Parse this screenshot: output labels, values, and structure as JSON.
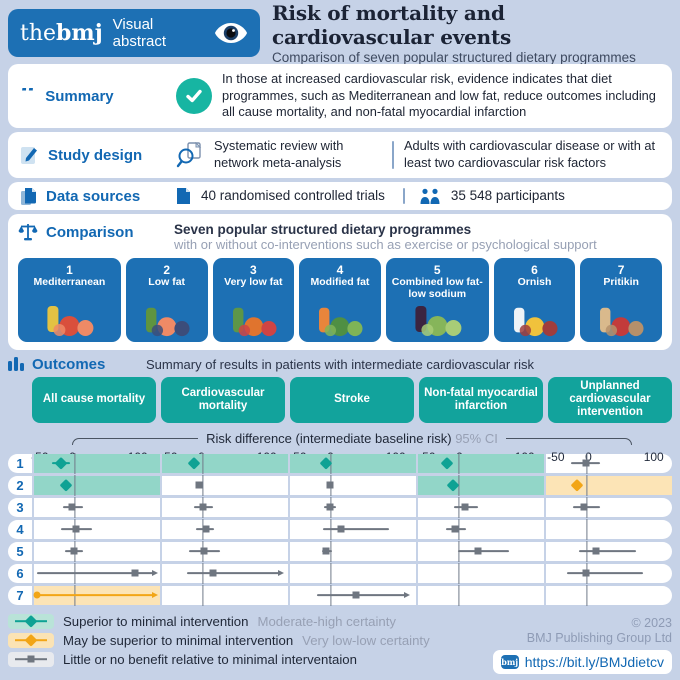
{
  "header": {
    "brand_the": "the",
    "brand_bmj": "bmj",
    "brand_label": "Visual abstract",
    "title": "Risk of mortality and cardiovascular events",
    "subtitle": "Comparison of seven popular structured dietary programmes"
  },
  "summary": {
    "label": "Summary",
    "text": "In those at increased cardiovascular risk, evidence indicates that diet programmes, such as Mediterranean and low fat, reduce outcomes including all cause mortality, and non-fatal myocardial infarction"
  },
  "study_design": {
    "label": "Study design",
    "method": "Systematic review with network meta-analysis",
    "population": "Adults with cardiovascular disease or with at least two cardiovascular risk factors"
  },
  "data_sources": {
    "label": "Data sources",
    "trials": "40 randomised controlled trials",
    "participants": "35 548 participants"
  },
  "comparison": {
    "label": "Comparison",
    "line1": "Seven popular structured dietary programmes",
    "line2": "with or without co-interventions such as exercise or psychological support",
    "diets": [
      {
        "number": "1",
        "name": "Mediterranean",
        "icon": "mediterranean-foods-icon",
        "art": [
          "#e3c243",
          "#d94f3c",
          "#ef8a66"
        ],
        "wide": true
      },
      {
        "number": "2",
        "name": "Low fat",
        "icon": "low-fat-foods-icon",
        "art": [
          "#5f9440",
          "#ef8a66",
          "#3c4d7a"
        ],
        "wide": false
      },
      {
        "number": "3",
        "name": "Very low fat",
        "icon": "very-low-fat-foods-icon",
        "art": [
          "#5d9648",
          "#e0742e",
          "#cf4444"
        ],
        "wide": false
      },
      {
        "number": "4",
        "name": "Modified fat",
        "icon": "modified-fat-foods-icon",
        "art": [
          "#e8853b",
          "#4f8f43",
          "#7fb457"
        ],
        "wide": false
      },
      {
        "number": "5",
        "name": "Combined low fat-low sodium",
        "icon": "combined-low-fat-low-sodium-foods-icon",
        "art": [
          "#3b2440",
          "#86b55a",
          "#a8cc77"
        ],
        "wide": true
      },
      {
        "number": "6",
        "name": "Ornish",
        "icon": "ornish-foods-icon",
        "art": [
          "#eef3f7",
          "#f0c23c",
          "#a03d3d"
        ],
        "wide": false
      },
      {
        "number": "7",
        "name": "Pritikin",
        "icon": "pritikin-foods-icon",
        "art": [
          "#d9b98c",
          "#c23b3b",
          "#b5906b"
        ],
        "wide": false
      }
    ]
  },
  "outcomes": {
    "label": "Outcomes",
    "subtitle": "Summary of results in patients with intermediate cardiovascular risk"
  },
  "chart_data": {
    "type": "forest",
    "title": "Risk difference (intermediate baseline risk)",
    "title_suffix": "95% CI",
    "axis": {
      "ticks": [
        "-50",
        "0",
        "100"
      ],
      "tick_values": [
        -50,
        0,
        100
      ],
      "min": -62,
      "max": 128
    },
    "columns": [
      "All cause mortality",
      "Cardiovascular mortality",
      "Stroke",
      "Non-fatal myocardial infarction",
      "Unplanned cardiovascular intervention"
    ],
    "rows": [
      {
        "id": "1",
        "name": "Mediterranean",
        "cells": [
          {
            "bg": "teal",
            "marker": "teal-diamond",
            "v": -22,
            "lo": -35,
            "hi": -8
          },
          {
            "bg": "teal",
            "marker": "teal-diamond",
            "v": -13,
            "lo": -18,
            "hi": -8
          },
          {
            "bg": "teal",
            "marker": "teal-diamond",
            "v": -8,
            "lo": -12,
            "hi": -4
          },
          {
            "bg": "teal",
            "marker": "teal-diamond",
            "v": -19,
            "lo": -25,
            "hi": -13
          },
          {
            "marker": "gray-square",
            "v": -2,
            "lo": -25,
            "hi": 20
          }
        ]
      },
      {
        "id": "2",
        "name": "Low fat",
        "cells": [
          {
            "bg": "teal",
            "marker": "teal-diamond",
            "v": -13,
            "lo": -17,
            "hi": -9
          },
          {
            "marker": "gray-square",
            "v": -6,
            "lo": -11,
            "hi": -1
          },
          {
            "marker": "gray-square",
            "v": -1,
            "lo": -5,
            "hi": 3
          },
          {
            "bg": "teal",
            "marker": "teal-diamond",
            "v": -9,
            "lo": -13,
            "hi": -5
          },
          {
            "bg": "orange",
            "marker": "orange-diamond",
            "v": -15,
            "lo": -22,
            "hi": -8
          }
        ]
      },
      {
        "id": "3",
        "name": "Very low fat",
        "cells": [
          {
            "marker": "gray-square",
            "v": -5,
            "lo": -18,
            "hi": 12
          },
          {
            "marker": "gray-square",
            "v": 0,
            "lo": -13,
            "hi": 15
          },
          {
            "marker": "gray-square",
            "v": -2,
            "lo": -10,
            "hi": 7
          },
          {
            "marker": "gray-square",
            "v": 9,
            "lo": -8,
            "hi": 28
          },
          {
            "marker": "gray-square",
            "v": -5,
            "lo": -22,
            "hi": 20
          }
        ]
      },
      {
        "id": "4",
        "name": "Modified fat",
        "cells": [
          {
            "marker": "gray-square",
            "v": 2,
            "lo": -22,
            "hi": 25
          },
          {
            "marker": "gray-square",
            "v": 4,
            "lo": -10,
            "hi": 17
          },
          {
            "marker": "gray-square",
            "v": 15,
            "lo": -12,
            "hi": 88
          },
          {
            "marker": "gray-square",
            "v": -6,
            "lo": -20,
            "hi": 10
          },
          null
        ]
      },
      {
        "id": "5",
        "name": "Combined low fat-low sodium",
        "cells": [
          {
            "marker": "gray-square",
            "v": -2,
            "lo": -15,
            "hi": 12
          },
          {
            "marker": "gray-square",
            "v": 2,
            "lo": -22,
            "hi": 25
          },
          {
            "marker": "gray-square",
            "v": -8,
            "lo": -14,
            "hi": 2
          },
          {
            "marker": "gray-square",
            "v": 28,
            "lo": -2,
            "hi": 75
          },
          {
            "marker": "gray-square",
            "v": 13,
            "lo": -12,
            "hi": 73
          }
        ]
      },
      {
        "id": "6",
        "name": "Ornish",
        "cells": [
          {
            "marker": "gray-square",
            "v": 90,
            "lo": -58,
            "hi": 118,
            "arrow_right": true
          },
          {
            "marker": "gray-square",
            "v": 15,
            "lo": -25,
            "hi": 115,
            "arrow_right": true
          },
          null,
          null,
          {
            "marker": "gray-square",
            "v": -2,
            "lo": -30,
            "hi": 85
          }
        ]
      },
      {
        "id": "7",
        "name": "Pritikin",
        "cells": [
          {
            "bg": "orange",
            "marker": "orange-range",
            "v": -58,
            "lo": -58,
            "hi": 118,
            "arrow_right": true,
            "dot_left": true
          },
          null,
          {
            "marker": "gray-square",
            "v": 38,
            "lo": -22,
            "hi": 112,
            "arrow_right": true
          },
          null,
          null
        ]
      }
    ],
    "legend_position": "bottom-left",
    "grid": false
  },
  "legend": {
    "items": [
      {
        "marker": "teal-diamond",
        "label": "Superior to minimal intervention",
        "certainty": "Moderate-high certainty"
      },
      {
        "marker": "orange-diamond",
        "label": "May be superior to minimal intervention",
        "certainty": "Very low-low certainty"
      },
      {
        "marker": "gray-square",
        "label": "Little or no benefit relative to minimal interventaion",
        "certainty": ""
      }
    ]
  },
  "footer": {
    "copyright_line1": "© 2023",
    "copyright_line2": "BMJ Publishing Group Ltd",
    "link_logo": "bmj",
    "link": "https://bit.ly/BMJdietcv"
  },
  "colors": {
    "background": "#c6d2e7",
    "bmj_blue": "#1d70b4",
    "label_blue": "#1268b3",
    "teal_header": "#12a39c",
    "teal_marker": "#0fa294",
    "teal_highlight": "#92d6c8",
    "orange_marker": "#f2a516",
    "orange_highlight": "#fce4b6",
    "gray_marker": "#6f7680"
  }
}
